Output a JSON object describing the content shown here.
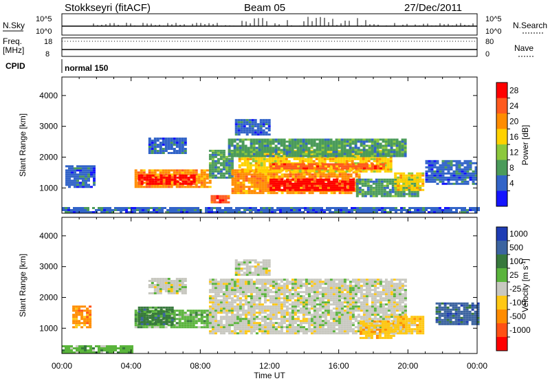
{
  "header": {
    "station": "Stokkseyri (fitACF)",
    "beam": "Beam 05",
    "date": "27/Dec/2011"
  },
  "status_panels": {
    "nsky_label": "N.Sky",
    "nsky_ticks": [
      "10^5",
      "10^0"
    ],
    "nsearch_label": "N.Search",
    "nsearch_ticks": [
      "10^5",
      "10^0"
    ],
    "freq_label_1": "Freq.",
    "freq_label_2": "[MHz]",
    "freq_ticks": [
      "18",
      "8"
    ],
    "nave_label": "Nave",
    "nave_ticks": [
      "80",
      "0"
    ],
    "cpid_label": "CPID",
    "cpid_value": "normal 150"
  },
  "power_colorbar": {
    "label": "Power [dB]",
    "ticks": [
      "28",
      "24",
      "20",
      "16",
      "12",
      "8",
      "4"
    ],
    "colors": [
      "#ff0000",
      "#ff5a1e",
      "#ff8c00",
      "#ffd200",
      "#8cc83c",
      "#4b9b5a",
      "#3264c8",
      "#1414ff"
    ]
  },
  "velocity_colorbar": {
    "label": "Velocity [m s",
    "label_sup": "-1",
    "label_end": "]",
    "ticks": [
      "1000",
      "500",
      "100",
      "25",
      "-25",
      "-100",
      "-500",
      "-1000"
    ],
    "colors": [
      "#1e3cb4",
      "#3c64a0",
      "#37783c",
      "#5ab43c",
      "#c8c8c0",
      "#ffc814",
      "#ff8c00",
      "#ff5014",
      "#ff0000"
    ]
  },
  "chart_data": [
    {
      "type": "heatmap",
      "name": "power",
      "ylabel": "Slant Range [km]",
      "xlabel": "Time UT",
      "x_ticks": [
        "00:00",
        "04:00",
        "08:00",
        "12:00",
        "16:00",
        "20:00",
        "00:00"
      ],
      "xlim_hours": [
        0,
        24
      ],
      "ylim_km": [
        180,
        4600
      ],
      "y_ticks": [
        "4000",
        "3000",
        "2000",
        "1000"
      ],
      "grid": false,
      "regions": [
        {
          "t0": 0.2,
          "t1": 1.8,
          "r0": 1000,
          "r1": 1700,
          "level": 1
        },
        {
          "t0": 4.2,
          "t1": 8.6,
          "r0": 1000,
          "r1": 1600,
          "level": 5
        },
        {
          "t0": 4.4,
          "t1": 7.6,
          "r0": 1100,
          "r1": 1400,
          "level": 7
        },
        {
          "t0": 5.0,
          "t1": 7.2,
          "r0": 2100,
          "r1": 2600,
          "level": 1
        },
        {
          "t0": 8.5,
          "t1": 9.8,
          "r0": 1300,
          "r1": 2200,
          "level": 2
        },
        {
          "t0": 8.6,
          "t1": 9.6,
          "r0": 500,
          "r1": 750,
          "level": 6
        },
        {
          "t0": 9.8,
          "t1": 17.2,
          "r0": 800,
          "r1": 1600,
          "level": 5
        },
        {
          "t0": 12.0,
          "t1": 16.8,
          "r0": 900,
          "r1": 1250,
          "level": 7
        },
        {
          "t0": 10.2,
          "t1": 19.0,
          "r0": 1500,
          "r1": 2200,
          "level": 4
        },
        {
          "t0": 12.0,
          "t1": 18.6,
          "r0": 1600,
          "r1": 1800,
          "level": 6
        },
        {
          "t0": 9.6,
          "t1": 19.8,
          "r0": 2000,
          "r1": 2600,
          "level": 2
        },
        {
          "t0": 10.0,
          "t1": 12.0,
          "r0": 2700,
          "r1": 3200,
          "level": 1
        },
        {
          "t0": 17.0,
          "t1": 20.6,
          "r0": 700,
          "r1": 1300,
          "level": 2
        },
        {
          "t0": 19.2,
          "t1": 20.8,
          "r0": 900,
          "r1": 1500,
          "level": 4
        },
        {
          "t0": 21.0,
          "t1": 24.0,
          "r0": 1100,
          "r1": 1900,
          "level": 1
        },
        {
          "t0": 0.0,
          "t1": 24.0,
          "r0": 180,
          "r1": 350,
          "level": 1
        }
      ]
    },
    {
      "type": "heatmap",
      "name": "velocity",
      "ylabel": "Slant Range [km]",
      "xlabel": "Time UT",
      "x_ticks": [
        "00:00",
        "04:00",
        "08:00",
        "12:00",
        "16:00",
        "20:00",
        "00:00"
      ],
      "xlim_hours": [
        0,
        24
      ],
      "ylim_km": [
        180,
        4600
      ],
      "y_ticks": [
        "4000",
        "3000",
        "2000",
        "1000"
      ],
      "grid": false,
      "regions": [
        {
          "t0": 0.6,
          "t1": 1.6,
          "r0": 1000,
          "r1": 1700,
          "level": 2
        },
        {
          "t0": 4.2,
          "t1": 8.6,
          "r0": 1000,
          "r1": 1600,
          "level": 5
        },
        {
          "t0": 4.4,
          "t1": 6.4,
          "r0": 1100,
          "r1": 1700,
          "level": 6
        },
        {
          "t0": 5.0,
          "t1": 7.2,
          "r0": 2100,
          "r1": 2600,
          "level": 4
        },
        {
          "t0": 8.5,
          "t1": 19.8,
          "r0": 800,
          "r1": 2600,
          "level": 4
        },
        {
          "t0": 10.0,
          "t1": 12.0,
          "r0": 2700,
          "r1": 3200,
          "level": 4
        },
        {
          "t0": 17.2,
          "t1": 19.2,
          "r0": 650,
          "r1": 1200,
          "level": 3
        },
        {
          "t0": 19.2,
          "t1": 20.8,
          "r0": 800,
          "r1": 1400,
          "level": 3
        },
        {
          "t0": 21.6,
          "t1": 24.0,
          "r0": 1100,
          "r1": 1800,
          "level": 7
        },
        {
          "t0": 0.0,
          "t1": 4.0,
          "r0": 180,
          "r1": 420,
          "level": 5
        }
      ]
    }
  ]
}
